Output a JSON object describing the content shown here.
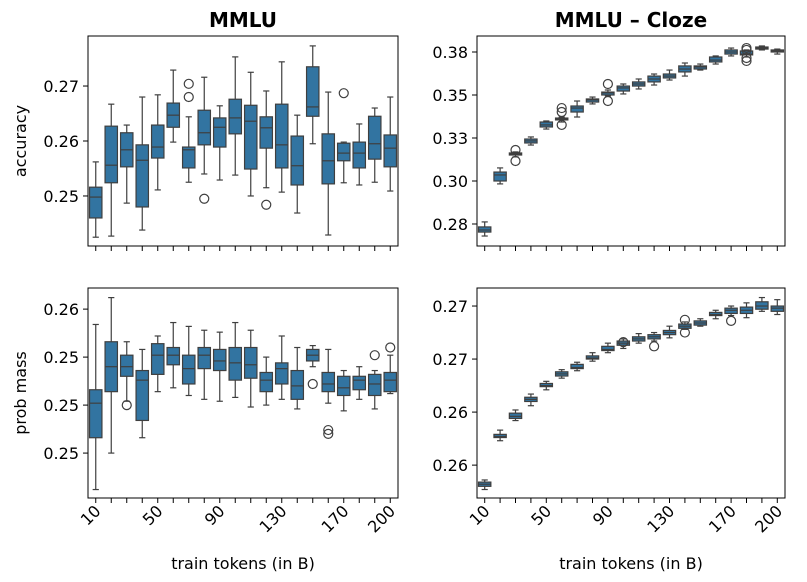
{
  "chart_data": [
    {
      "type": "box",
      "title": "MMLU",
      "ylabel": "accuracy",
      "color": "#3274a1",
      "categories": [
        null,
        null,
        null,
        null,
        null,
        null,
        null,
        null,
        null,
        null,
        null,
        null,
        null,
        null,
        null,
        null,
        null,
        null,
        null,
        null
      ],
      "ylim": [
        0.2409,
        0.2791
      ],
      "yticks": [
        0.25,
        0.26,
        0.27
      ],
      "boxes": [
        {
          "whislo": 0.2425,
          "q1": 0.246,
          "med": 0.2498,
          "q3": 0.2516,
          "whishi": 0.2562,
          "fliers": []
        },
        {
          "whislo": 0.2427,
          "q1": 0.2524,
          "med": 0.2556,
          "q3": 0.2627,
          "whishi": 0.2667,
          "fliers": []
        },
        {
          "whislo": 0.2487,
          "q1": 0.2553,
          "med": 0.2584,
          "q3": 0.2615,
          "whishi": 0.2629,
          "fliers": []
        },
        {
          "whislo": 0.2438,
          "q1": 0.248,
          "med": 0.2565,
          "q3": 0.2593,
          "whishi": 0.268,
          "fliers": []
        },
        {
          "whislo": 0.2511,
          "q1": 0.2569,
          "med": 0.2589,
          "q3": 0.2629,
          "whishi": 0.2684,
          "fliers": []
        },
        {
          "whislo": 0.2598,
          "q1": 0.2625,
          "med": 0.2647,
          "q3": 0.2669,
          "whishi": 0.2729,
          "fliers": []
        },
        {
          "whislo": 0.2525,
          "q1": 0.2551,
          "med": 0.2584,
          "q3": 0.2589,
          "whishi": 0.2644,
          "fliers": [
            0.2704,
            0.268
          ]
        },
        {
          "whislo": 0.254,
          "q1": 0.2593,
          "med": 0.2615,
          "q3": 0.2656,
          "whishi": 0.2716,
          "fliers": [
            0.2495
          ]
        },
        {
          "whislo": 0.2529,
          "q1": 0.2589,
          "med": 0.2625,
          "q3": 0.2642,
          "whishi": 0.2664,
          "fliers": []
        },
        {
          "whislo": 0.2538,
          "q1": 0.2613,
          "med": 0.2642,
          "q3": 0.2676,
          "whishi": 0.2753,
          "fliers": []
        },
        {
          "whislo": 0.25,
          "q1": 0.2549,
          "med": 0.2636,
          "q3": 0.2665,
          "whishi": 0.2725,
          "fliers": []
        },
        {
          "whislo": 0.2515,
          "q1": 0.2587,
          "med": 0.2624,
          "q3": 0.2644,
          "whishi": 0.2691,
          "fliers": [
            0.2484
          ]
        },
        {
          "whislo": 0.2507,
          "q1": 0.2551,
          "med": 0.2593,
          "q3": 0.2667,
          "whishi": 0.2744,
          "fliers": []
        },
        {
          "whislo": 0.2469,
          "q1": 0.252,
          "med": 0.2555,
          "q3": 0.2609,
          "whishi": 0.2647,
          "fliers": []
        },
        {
          "whislo": 0.2595,
          "q1": 0.2645,
          "med": 0.2662,
          "q3": 0.2735,
          "whishi": 0.2773,
          "fliers": []
        },
        {
          "whislo": 0.2429,
          "q1": 0.2522,
          "med": 0.2564,
          "q3": 0.2613,
          "whishi": 0.2689,
          "fliers": []
        },
        {
          "whislo": 0.2524,
          "q1": 0.2564,
          "med": 0.2578,
          "q3": 0.2596,
          "whishi": 0.2598,
          "fliers": [
            0.2687
          ]
        },
        {
          "whislo": 0.252,
          "q1": 0.2551,
          "med": 0.2578,
          "q3": 0.2598,
          "whishi": 0.2631,
          "fliers": []
        },
        {
          "whislo": 0.2525,
          "q1": 0.2567,
          "med": 0.2595,
          "q3": 0.2645,
          "whishi": 0.266,
          "fliers": []
        },
        {
          "whislo": 0.2509,
          "q1": 0.2553,
          "med": 0.2587,
          "q3": 0.2611,
          "whishi": 0.268,
          "fliers": []
        }
      ]
    },
    {
      "type": "box",
      "title": "MMLU – Cloze",
      "color": "#3274a1",
      "categories": [
        null,
        null,
        null,
        null,
        null,
        null,
        null,
        null,
        null,
        null,
        null,
        null,
        null,
        null,
        null,
        null,
        null,
        null,
        null,
        null
      ],
      "ylim": [
        0.2622,
        0.3843
      ],
      "yticks": [
        {
          "value": 0.275,
          "label": "0.28"
        },
        {
          "value": 0.3,
          "label": "0.30"
        },
        {
          "value": 0.325,
          "label": "0.33"
        },
        0.35,
        {
          "value": 0.375,
          "label": "0.38"
        }
      ],
      "boxes": [
        {
          "whislo": 0.268,
          "q1": 0.2703,
          "med": 0.2715,
          "q3": 0.2733,
          "whishi": 0.2762,
          "fliers": []
        },
        {
          "whislo": 0.2983,
          "q1": 0.3,
          "med": 0.3035,
          "q3": 0.3052,
          "whishi": 0.3076,
          "fliers": []
        },
        {
          "whislo": 0.314,
          "q1": 0.3151,
          "med": 0.3157,
          "q3": 0.3163,
          "whishi": 0.3169,
          "fliers": [
            0.318,
            0.3116
          ]
        },
        {
          "whislo": 0.3209,
          "q1": 0.3221,
          "med": 0.3233,
          "q3": 0.3244,
          "whishi": 0.3256,
          "fliers": []
        },
        {
          "whislo": 0.3302,
          "q1": 0.3314,
          "med": 0.3326,
          "q3": 0.3343,
          "whishi": 0.3349,
          "fliers": []
        },
        {
          "whislo": 0.3343,
          "q1": 0.3355,
          "med": 0.336,
          "q3": 0.3366,
          "whishi": 0.3372,
          "fliers": [
            0.3424,
            0.3401,
            0.3326
          ]
        },
        {
          "whislo": 0.3372,
          "q1": 0.3401,
          "med": 0.3424,
          "q3": 0.3436,
          "whishi": 0.3465,
          "fliers": []
        },
        {
          "whislo": 0.3448,
          "q1": 0.3459,
          "med": 0.3471,
          "q3": 0.3477,
          "whishi": 0.3488,
          "fliers": []
        },
        {
          "whislo": 0.3494,
          "q1": 0.35,
          "med": 0.3512,
          "q3": 0.3517,
          "whishi": 0.3529,
          "fliers": [
            0.3564,
            0.3465
          ]
        },
        {
          "whislo": 0.3506,
          "q1": 0.3523,
          "med": 0.3541,
          "q3": 0.3552,
          "whishi": 0.3564,
          "fliers": []
        },
        {
          "whislo": 0.3535,
          "q1": 0.3552,
          "med": 0.3564,
          "q3": 0.3576,
          "whishi": 0.3593,
          "fliers": []
        },
        {
          "whislo": 0.3558,
          "q1": 0.3576,
          "med": 0.3593,
          "q3": 0.361,
          "whishi": 0.3622,
          "fliers": []
        },
        {
          "whislo": 0.3587,
          "q1": 0.3599,
          "med": 0.361,
          "q3": 0.3622,
          "whishi": 0.3645,
          "fliers": []
        },
        {
          "whislo": 0.361,
          "q1": 0.3634,
          "med": 0.3651,
          "q3": 0.3669,
          "whishi": 0.3686,
          "fliers": []
        },
        {
          "whislo": 0.3645,
          "q1": 0.3651,
          "med": 0.3663,
          "q3": 0.3669,
          "whishi": 0.368,
          "fliers": []
        },
        {
          "whislo": 0.368,
          "q1": 0.3692,
          "med": 0.3703,
          "q3": 0.3721,
          "whishi": 0.3727,
          "fliers": []
        },
        {
          "whislo": 0.3727,
          "q1": 0.3738,
          "med": 0.375,
          "q3": 0.3762,
          "whishi": 0.3773,
          "fliers": []
        },
        {
          "whislo": 0.3721,
          "q1": 0.3733,
          "med": 0.3738,
          "q3": 0.3756,
          "whishi": 0.3762,
          "fliers": [
            0.3773,
            0.3762,
            0.3715,
            0.3698
          ]
        },
        {
          "whislo": 0.3762,
          "q1": 0.3767,
          "med": 0.3773,
          "q3": 0.3779,
          "whishi": 0.3785,
          "fliers": []
        },
        {
          "whislo": 0.3738,
          "q1": 0.375,
          "med": 0.3756,
          "q3": 0.3762,
          "whishi": 0.3767,
          "fliers": []
        }
      ]
    },
    {
      "type": "box",
      "ylabel": "prob mass",
      "xlabel": "train tokens (in B)",
      "color": "#3274a1",
      "categories": [
        "10",
        null,
        null,
        null,
        "50",
        null,
        null,
        null,
        "90",
        null,
        null,
        null,
        "130",
        null,
        null,
        null,
        "170",
        null,
        null,
        "200"
      ],
      "ylim": [
        0.24516,
        0.2561
      ],
      "yticks": [
        {
          "value": 0.2475,
          "label": "0.25"
        },
        0.25,
        {
          "value": 0.2525,
          "label": "0.25"
        },
        {
          "value": 0.255,
          "label": "0.26"
        }
      ],
      "boxes": [
        {
          "whislo": 0.2456,
          "q1": 0.2483,
          "med": 0.2501,
          "q3": 0.2508,
          "whishi": 0.2542,
          "fliers": []
        },
        {
          "whislo": 0.2475,
          "q1": 0.2507,
          "med": 0.252,
          "q3": 0.2533,
          "whishi": 0.2556,
          "fliers": []
        },
        {
          "whislo": 0.2502,
          "q1": 0.2515,
          "med": 0.252,
          "q3": 0.2526,
          "whishi": 0.2533,
          "fliers": [
            0.25
          ]
        },
        {
          "whislo": 0.2483,
          "q1": 0.2492,
          "med": 0.2513,
          "q3": 0.2518,
          "whishi": 0.2529,
          "fliers": []
        },
        {
          "whislo": 0.2507,
          "q1": 0.2516,
          "med": 0.2526,
          "q3": 0.2532,
          "whishi": 0.2536,
          "fliers": []
        },
        {
          "whislo": 0.2509,
          "q1": 0.2521,
          "med": 0.2526,
          "q3": 0.253,
          "whishi": 0.2543,
          "fliers": []
        },
        {
          "whislo": 0.2505,
          "q1": 0.2511,
          "med": 0.2519,
          "q3": 0.2526,
          "whishi": 0.2541,
          "fliers": []
        },
        {
          "whislo": 0.2503,
          "q1": 0.2519,
          "med": 0.2526,
          "q3": 0.253,
          "whishi": 0.2539,
          "fliers": []
        },
        {
          "whislo": 0.2502,
          "q1": 0.2518,
          "med": 0.2523,
          "q3": 0.2529,
          "whishi": 0.2538,
          "fliers": []
        },
        {
          "whislo": 0.2504,
          "q1": 0.2513,
          "med": 0.2522,
          "q3": 0.253,
          "whishi": 0.2543,
          "fliers": []
        },
        {
          "whislo": 0.2499,
          "q1": 0.2514,
          "med": 0.2521,
          "q3": 0.253,
          "whishi": 0.2539,
          "fliers": []
        },
        {
          "whislo": 0.25,
          "q1": 0.2507,
          "med": 0.2513,
          "q3": 0.2517,
          "whishi": 0.2525,
          "fliers": []
        },
        {
          "whislo": 0.2503,
          "q1": 0.2511,
          "med": 0.2519,
          "q3": 0.2522,
          "whishi": 0.2536,
          "fliers": []
        },
        {
          "whislo": 0.2498,
          "q1": 0.2503,
          "med": 0.251,
          "q3": 0.2518,
          "whishi": 0.253,
          "fliers": []
        },
        {
          "whislo": 0.252,
          "q1": 0.2523,
          "med": 0.2526,
          "q3": 0.2529,
          "whishi": 0.2531,
          "fliers": [
            0.2511
          ]
        },
        {
          "whislo": 0.2501,
          "q1": 0.2507,
          "med": 0.2511,
          "q3": 0.2517,
          "whishi": 0.2529,
          "fliers": [
            0.2487,
            0.2485
          ]
        },
        {
          "whislo": 0.2497,
          "q1": 0.2505,
          "med": 0.2509,
          "q3": 0.2515,
          "whishi": 0.2518,
          "fliers": []
        },
        {
          "whislo": 0.2503,
          "q1": 0.2508,
          "med": 0.2513,
          "q3": 0.2515,
          "whishi": 0.252,
          "fliers": []
        },
        {
          "whislo": 0.2498,
          "q1": 0.2505,
          "med": 0.2511,
          "q3": 0.2516,
          "whishi": 0.2518,
          "fliers": [
            0.2526
          ]
        },
        {
          "whislo": 0.2506,
          "q1": 0.2507,
          "med": 0.2513,
          "q3": 0.2517,
          "whishi": 0.2526,
          "fliers": [
            0.253
          ]
        }
      ]
    },
    {
      "type": "box",
      "xlabel": "train tokens (in B)",
      "color": "#3274a1",
      "categories": [
        "10",
        null,
        null,
        null,
        "50",
        null,
        null,
        null,
        "90",
        null,
        null,
        null,
        "130",
        null,
        null,
        null,
        "170",
        null,
        null,
        "200"
      ],
      "ylim": [
        0.2519,
        0.2717
      ],
      "yticks": [
        {
          "value": 0.255,
          "label": "0.26"
        },
        0.26,
        {
          "value": 0.265,
          "label": "0.27"
        },
        0.27
      ],
      "boxes": [
        {
          "whislo": 0.2527,
          "q1": 0.253,
          "med": 0.2532,
          "q3": 0.2534,
          "whishi": 0.2536,
          "fliers": []
        },
        {
          "whislo": 0.2573,
          "q1": 0.2576,
          "med": 0.2577,
          "q3": 0.2579,
          "whishi": 0.2583,
          "fliers": []
        },
        {
          "whislo": 0.2592,
          "q1": 0.2594,
          "med": 0.2596,
          "q3": 0.2599,
          "whishi": 0.2602,
          "fliers": []
        },
        {
          "whislo": 0.2606,
          "q1": 0.261,
          "med": 0.2612,
          "q3": 0.2614,
          "whishi": 0.2617,
          "fliers": []
        },
        {
          "whislo": 0.2621,
          "q1": 0.2624,
          "med": 0.2625,
          "q3": 0.2627,
          "whishi": 0.2629,
          "fliers": []
        },
        {
          "whislo": 0.2632,
          "q1": 0.2634,
          "med": 0.2636,
          "q3": 0.2638,
          "whishi": 0.264,
          "fliers": []
        },
        {
          "whislo": 0.2639,
          "q1": 0.2641,
          "med": 0.2642,
          "q3": 0.2645,
          "whishi": 0.2647,
          "fliers": []
        },
        {
          "whislo": 0.2648,
          "q1": 0.265,
          "med": 0.2651,
          "q3": 0.2653,
          "whishi": 0.2656,
          "fliers": []
        },
        {
          "whislo": 0.2656,
          "q1": 0.2658,
          "med": 0.2659,
          "q3": 0.2662,
          "whishi": 0.2665,
          "fliers": []
        },
        {
          "whislo": 0.266,
          "q1": 0.2663,
          "med": 0.2665,
          "q3": 0.2667,
          "whishi": 0.2669,
          "fliers": [
            0.2666
          ]
        },
        {
          "whislo": 0.2665,
          "q1": 0.2667,
          "med": 0.2669,
          "q3": 0.2671,
          "whishi": 0.2674,
          "fliers": []
        },
        {
          "whislo": 0.2667,
          "q1": 0.2669,
          "med": 0.2671,
          "q3": 0.2673,
          "whishi": 0.2675,
          "fliers": [
            0.2662
          ]
        },
        {
          "whislo": 0.267,
          "q1": 0.2673,
          "med": 0.2675,
          "q3": 0.2677,
          "whishi": 0.2681,
          "fliers": []
        },
        {
          "whislo": 0.2678,
          "q1": 0.2679,
          "med": 0.2681,
          "q3": 0.2683,
          "whishi": 0.2685,
          "fliers": [
            0.2687,
            0.2675
          ]
        },
        {
          "whislo": 0.2681,
          "q1": 0.2682,
          "med": 0.2684,
          "q3": 0.2686,
          "whishi": 0.2688,
          "fliers": []
        },
        {
          "whislo": 0.2688,
          "q1": 0.2691,
          "med": 0.2692,
          "q3": 0.2694,
          "whishi": 0.2696,
          "fliers": []
        },
        {
          "whislo": 0.2691,
          "q1": 0.2693,
          "med": 0.2696,
          "q3": 0.2698,
          "whishi": 0.27,
          "fliers": [
            0.2686
          ]
        },
        {
          "whislo": 0.2689,
          "q1": 0.2693,
          "med": 0.2696,
          "q3": 0.2699,
          "whishi": 0.2703,
          "fliers": []
        },
        {
          "whislo": 0.2695,
          "q1": 0.2697,
          "med": 0.27,
          "q3": 0.2704,
          "whishi": 0.2708,
          "fliers": []
        },
        {
          "whislo": 0.2692,
          "q1": 0.2695,
          "med": 0.2698,
          "q3": 0.27,
          "whishi": 0.2706,
          "fliers": []
        }
      ]
    }
  ]
}
